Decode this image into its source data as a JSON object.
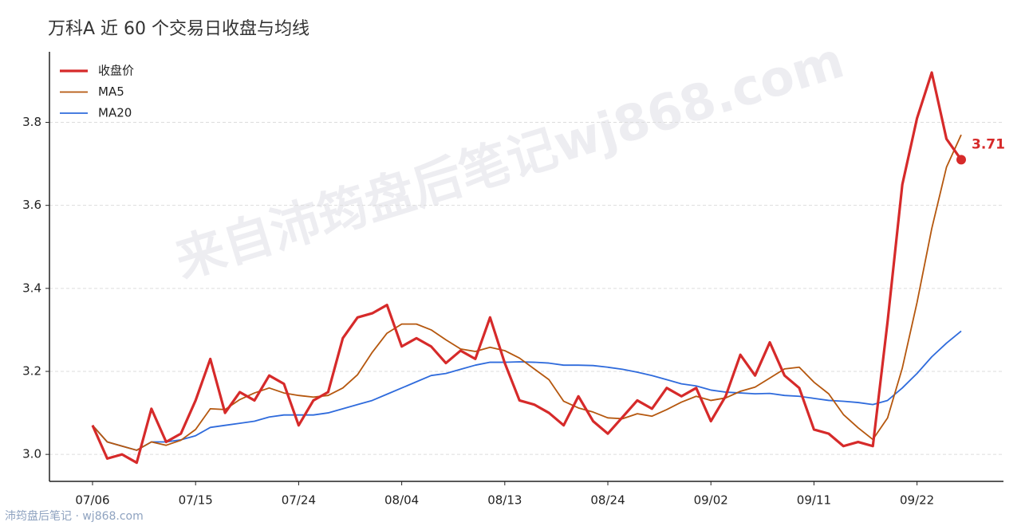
{
  "chart_data": {
    "type": "line",
    "title": "万科A 近 60 个交易日收盘与均线",
    "categories": [
      "07/06",
      null,
      null,
      null,
      null,
      null,
      null,
      "07/15",
      null,
      null,
      null,
      null,
      null,
      null,
      "07/24",
      null,
      null,
      null,
      null,
      null,
      null,
      "08/04",
      null,
      null,
      null,
      null,
      null,
      null,
      "08/13",
      null,
      null,
      null,
      null,
      null,
      null,
      "08/24",
      null,
      null,
      null,
      null,
      null,
      null,
      "09/02",
      null,
      null,
      null,
      null,
      null,
      null,
      "09/11",
      null,
      null,
      null,
      null,
      null,
      null,
      "09/22",
      null,
      null,
      null
    ],
    "series": [
      {
        "name": "收盘价",
        "color": "#d62a2a",
        "values": [
          3.07,
          2.99,
          3.0,
          2.98,
          3.11,
          3.03,
          3.05,
          3.13,
          3.23,
          3.1,
          3.15,
          3.13,
          3.19,
          3.17,
          3.07,
          3.13,
          3.15,
          3.28,
          3.33,
          3.34,
          3.36,
          3.26,
          3.28,
          3.26,
          3.22,
          3.25,
          3.23,
          3.33,
          3.22,
          3.13,
          3.12,
          3.1,
          3.07,
          3.14,
          3.08,
          3.05,
          3.09,
          3.13,
          3.11,
          3.16,
          3.14,
          3.16,
          3.08,
          3.14,
          3.24,
          3.19,
          3.27,
          3.19,
          3.16,
          3.06,
          3.05,
          3.02,
          3.03,
          3.02,
          3.32,
          3.65,
          3.81,
          3.92,
          3.76,
          3.71
        ]
      },
      {
        "name": "MA5",
        "color": "#b5570e",
        "values": [
          3.07,
          3.03,
          3.02,
          3.01,
          3.03,
          3.022,
          3.034,
          3.06,
          3.11,
          3.108,
          3.132,
          3.148,
          3.16,
          3.148,
          3.142,
          3.138,
          3.142,
          3.16,
          3.192,
          3.246,
          3.292,
          3.314,
          3.314,
          3.3,
          3.276,
          3.254,
          3.248,
          3.258,
          3.25,
          3.232,
          3.206,
          3.18,
          3.128,
          3.112,
          3.102,
          3.088,
          3.086,
          3.098,
          3.092,
          3.108,
          3.126,
          3.14,
          3.13,
          3.136,
          3.152,
          3.162,
          3.184,
          3.206,
          3.21,
          3.174,
          3.146,
          3.096,
          3.064,
          3.036,
          3.088,
          3.208,
          3.366,
          3.544,
          3.692,
          3.77
        ]
      },
      {
        "name": "MA20",
        "color": "#2f6bdc",
        "values": [
          3.07,
          3.03,
          3.02,
          3.01,
          3.03,
          3.03,
          3.035,
          3.045,
          3.065,
          3.07,
          3.075,
          3.08,
          3.09,
          3.095,
          3.095,
          3.095,
          3.1,
          3.11,
          3.12,
          3.13,
          3.145,
          3.16,
          3.175,
          3.19,
          3.195,
          3.205,
          3.215,
          3.222,
          3.222,
          3.223,
          3.222,
          3.22,
          3.215,
          3.215,
          3.214,
          3.21,
          3.205,
          3.198,
          3.19,
          3.18,
          3.17,
          3.165,
          3.155,
          3.15,
          3.148,
          3.146,
          3.147,
          3.142,
          3.14,
          3.135,
          3.13,
          3.128,
          3.125,
          3.12,
          3.13,
          3.16,
          3.195,
          3.235,
          3.268,
          3.297
        ]
      }
    ],
    "ylim": [
      2.935,
      3.97
    ],
    "yticks": [
      {
        "value": 3,
        "label": "3.0"
      },
      3.2,
      3.4,
      3.6,
      3.8
    ],
    "grid": true,
    "legend": "upper left",
    "watermark": "来自沛筠盘后笔记wj868.com",
    "footer": "沛筠盘后笔记 · wj868.com"
  }
}
